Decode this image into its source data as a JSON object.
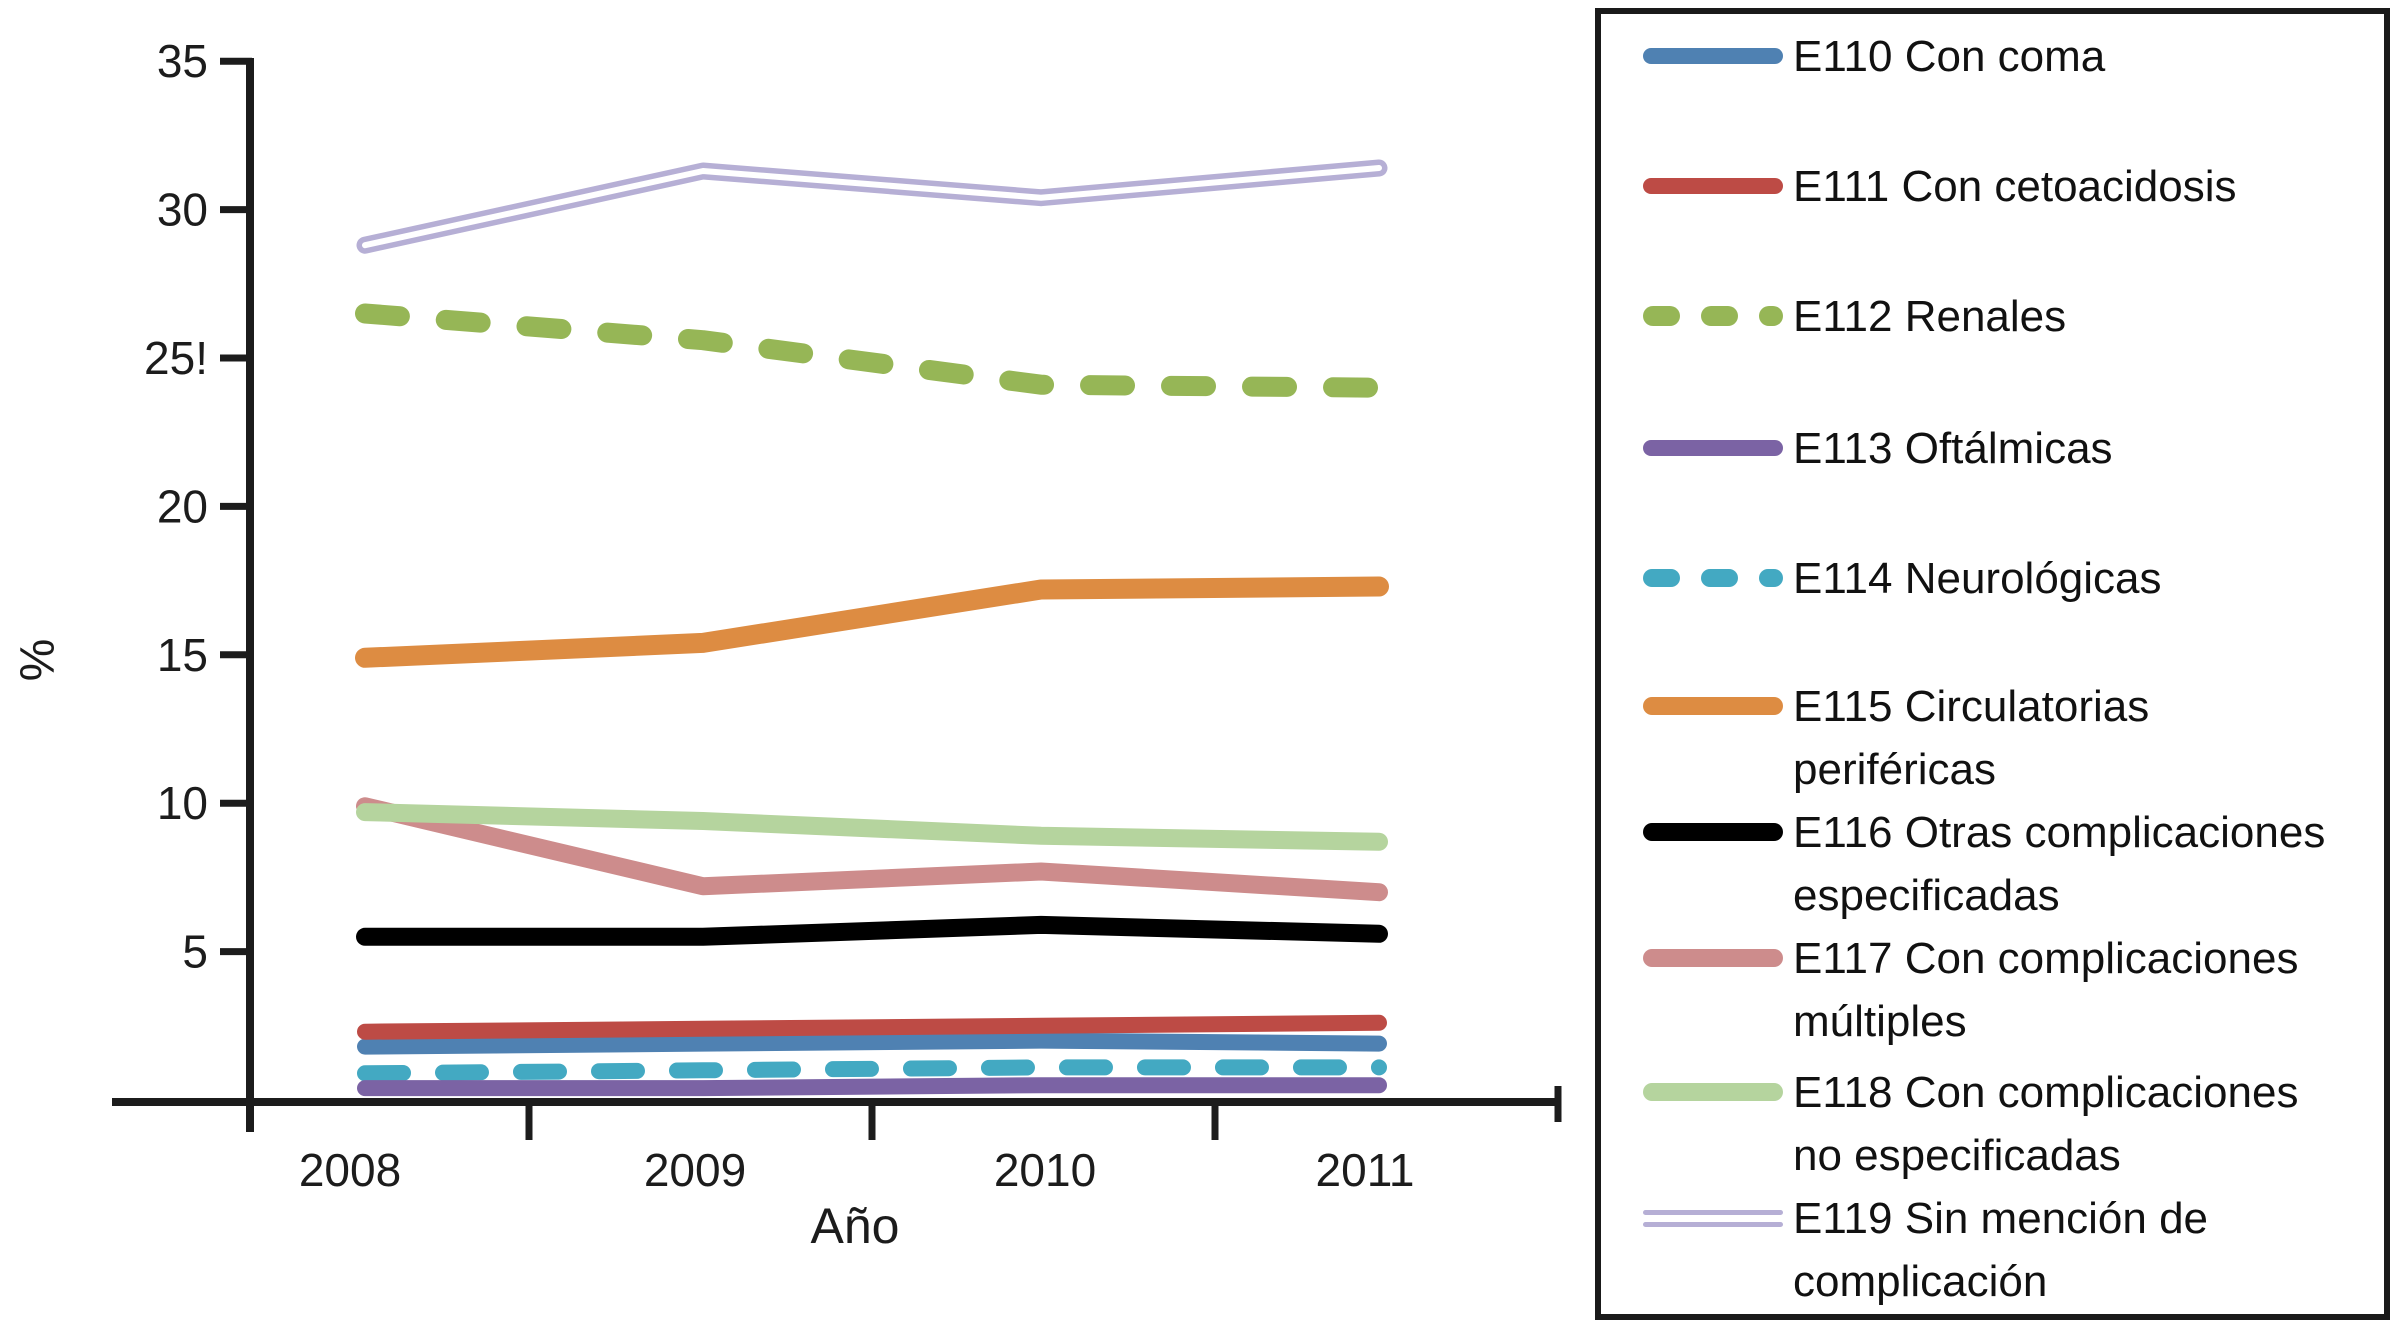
{
  "y_axis": {
    "label": "%",
    "ticks": [
      "35",
      "30",
      "25!",
      "20",
      "15",
      "10",
      "5"
    ],
    "tick_values": [
      35,
      30,
      25,
      20,
      15,
      10,
      5
    ]
  },
  "x_axis": {
    "label": "Año",
    "categories": [
      "2008",
      "2009",
      "2010",
      "2011"
    ]
  },
  "chart_data": {
    "type": "line",
    "x": [
      2008,
      2009,
      2010,
      2011
    ],
    "ylim": [
      0,
      35
    ],
    "grid": false,
    "legend_position": "right",
    "series": [
      {
        "name": "E110 Con coma",
        "color": "#4f81b2",
        "style": "solid",
        "values": [
          1.8,
          1.9,
          2.0,
          1.9
        ]
      },
      {
        "name": "E111 Con cetoacidosis",
        "color": "#bd4b45",
        "style": "solid",
        "values": [
          2.3,
          2.4,
          2.5,
          2.6
        ]
      },
      {
        "name": "E112 Renales",
        "color": "#96b656",
        "style": "dashed",
        "values": [
          26.5,
          25.6,
          24.1,
          24.0
        ]
      },
      {
        "name": "E113 Oftálmicas",
        "color": "#7b63a4",
        "style": "solid",
        "values": [
          0.4,
          0.4,
          0.5,
          0.5
        ]
      },
      {
        "name": "E114 Neurológicas",
        "color": "#43a9c2",
        "style": "dashed",
        "values": [
          0.9,
          1.0,
          1.1,
          1.1
        ]
      },
      {
        "name": "E115 Circulatorias periféricas",
        "color": "#dd8c42",
        "style": "solid",
        "values": [
          14.9,
          15.4,
          17.2,
          17.3
        ]
      },
      {
        "name": "E116 Otras complicaciones especificadas",
        "color": "#000000",
        "style": "solid",
        "values": [
          5.5,
          5.5,
          5.9,
          5.6
        ]
      },
      {
        "name": "E117 Con complicaciones múltiples",
        "color": "#cd8c8c",
        "style": "solid",
        "values": [
          9.9,
          7.2,
          7.7,
          7.0
        ]
      },
      {
        "name": "E118 Con complicaciones no especificadas",
        "color": "#b5d49e",
        "style": "solid",
        "values": [
          9.7,
          9.4,
          8.9,
          8.7
        ]
      },
      {
        "name": "E119 Sin mención de complicación",
        "color": "#b6afd5",
        "style": "double",
        "values": [
          28.8,
          31.3,
          30.4,
          31.4
        ]
      }
    ]
  },
  "legend": {
    "items": [
      {
        "series": 0,
        "label_lines": [
          "E110 Con coma"
        ]
      },
      {
        "series": 1,
        "label_lines": [
          "E111 Con cetoacidosis"
        ]
      },
      {
        "series": 2,
        "label_lines": [
          "E112 Renales"
        ]
      },
      {
        "series": 3,
        "label_lines": [
          "E113 Oftálmicas"
        ]
      },
      {
        "series": 4,
        "label_lines": [
          "E114 Neurológicas"
        ]
      },
      {
        "series": 5,
        "label_lines": [
          "E115 Circulatorias",
          "periféricas"
        ]
      },
      {
        "series": 6,
        "label_lines": [
          "E116 Otras complicaciones",
          "especificadas"
        ]
      },
      {
        "series": 7,
        "label_lines": [
          "E117 Con complicaciones",
          "múltiples"
        ]
      },
      {
        "series": 8,
        "label_lines": [
          "E118 Con complicaciones",
          "no especificadas"
        ]
      },
      {
        "series": 9,
        "label_lines": [
          "E119 Sin mención de",
          "complicación"
        ]
      }
    ]
  }
}
